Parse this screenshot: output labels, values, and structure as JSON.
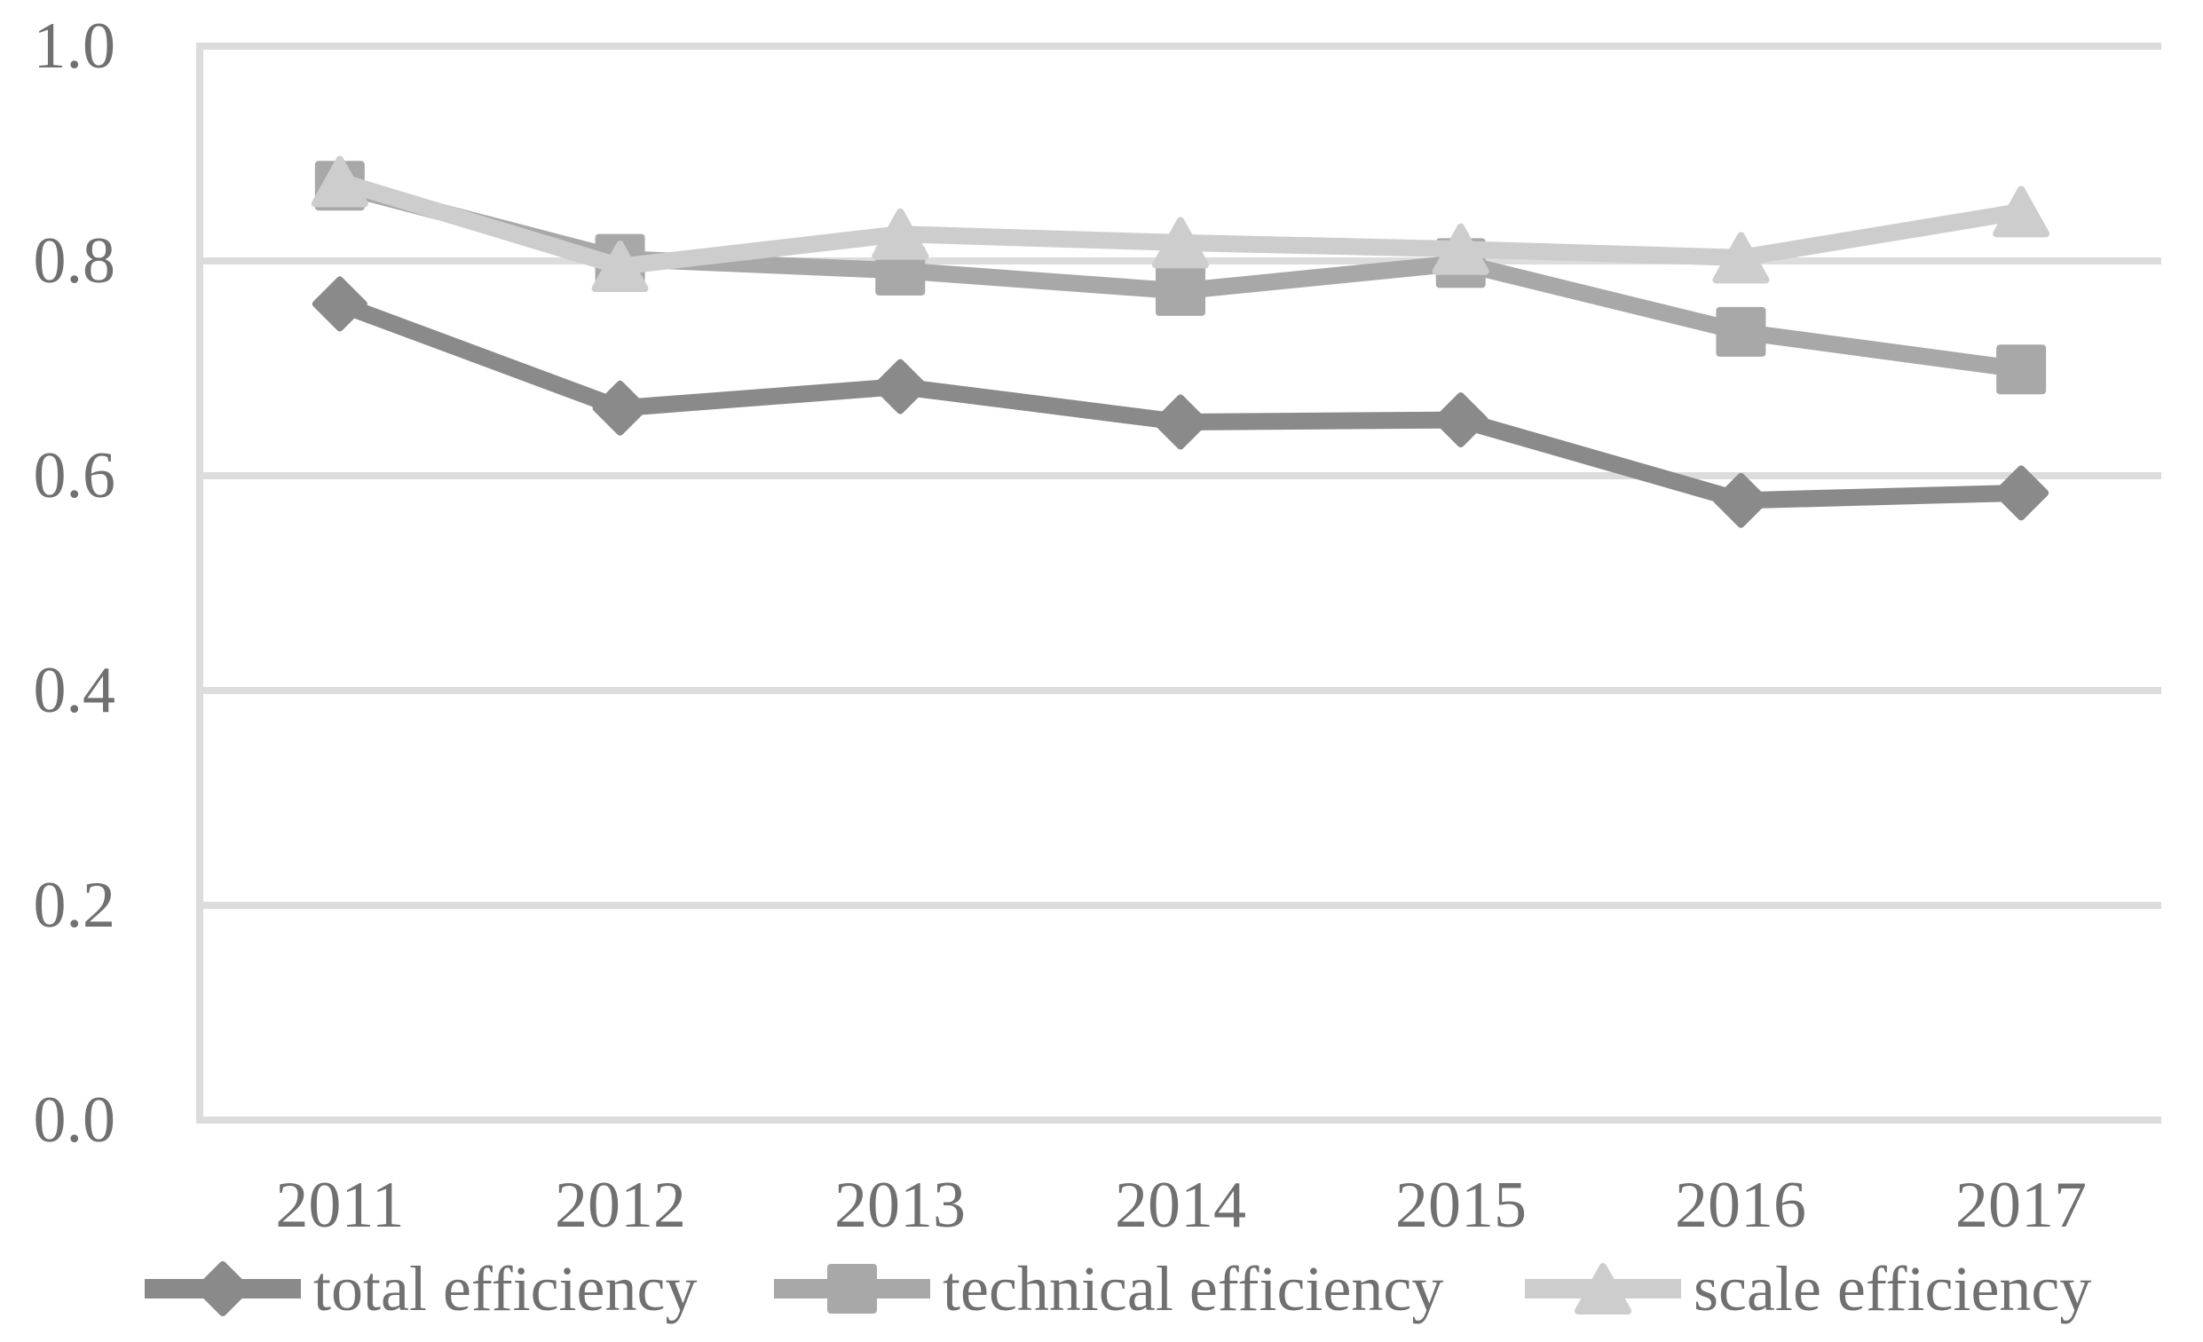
{
  "chart_data": {
    "type": "line",
    "title": "",
    "xlabel": "",
    "ylabel": "",
    "categories": [
      "2011",
      "2012",
      "2013",
      "2014",
      "2015",
      "2016",
      "2017"
    ],
    "series": [
      {
        "name": "total efficiency",
        "marker": "diamond",
        "color": "#8a8a8a",
        "values": [
          0.76,
          0.663,
          0.683,
          0.65,
          0.652,
          0.577,
          0.584
        ]
      },
      {
        "name": "technical efficiency",
        "marker": "square",
        "color": "#a8a8a8",
        "values": [
          0.87,
          0.802,
          0.791,
          0.772,
          0.798,
          0.734,
          0.699
        ]
      },
      {
        "name": "scale efficiency",
        "marker": "triangle",
        "color": "#cdcdcd",
        "values": [
          0.874,
          0.795,
          0.825,
          0.817,
          0.811,
          0.803,
          0.846
        ]
      }
    ],
    "ylim": [
      0.0,
      1.0
    ],
    "y_ticks": {
      "labels": [
        "1.0",
        "0.8",
        "0.6",
        "0.4",
        "0.2",
        "0.0"
      ],
      "values": [
        1.0,
        0.8,
        0.6,
        0.4,
        0.2,
        0.0
      ]
    },
    "grid": "horizontal",
    "gridline_color": "#dcdcdc",
    "axis_line_color": "#dcdcdc",
    "text_color": "#707070",
    "legend_position": "bottom"
  }
}
